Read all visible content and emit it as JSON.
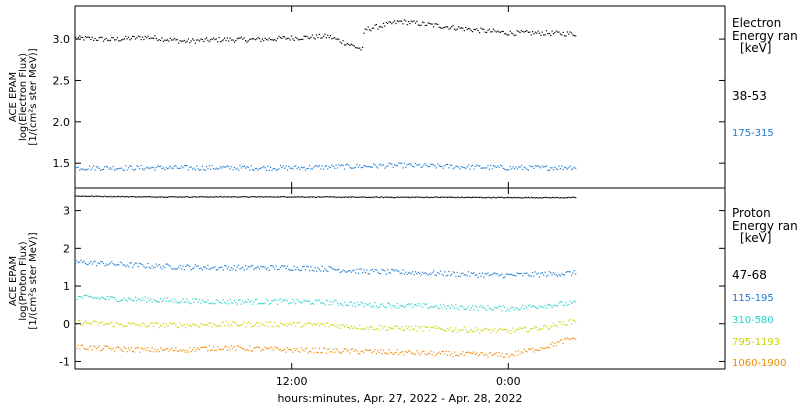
{
  "chart_data": [
    {
      "type": "scatter",
      "panel": "electron",
      "ylabel": [
        "ACE EPAM",
        "log(Electron Flux)",
        "[1/(cm²s ster MeV)]"
      ],
      "ylim": [
        1.2,
        3.4
      ],
      "yticks": [
        1.5,
        2.0,
        2.5,
        3.0
      ],
      "ytick_labels": [
        "1.5",
        "2.0",
        "2.5",
        "3.0"
      ],
      "x_data_range_hours": [
        0,
        27.7
      ],
      "xlim_hours": [
        0,
        36
      ],
      "legend": {
        "title_lines": [
          "Electron",
          "Energy ran"
        ],
        "unit": "[keV]",
        "entries": [
          {
            "label": "38-53",
            "color": "#000000"
          },
          {
            "label": "175-315",
            "color": "#1e7bd0"
          }
        ]
      },
      "series": [
        {
          "label": "38-53",
          "color": "#000000",
          "points": [
            [
              0,
              3.02
            ],
            [
              2,
              3.0
            ],
            [
              4,
              3.03
            ],
            [
              6,
              2.98
            ],
            [
              8,
              3.0
            ],
            [
              10,
              3.0
            ],
            [
              12,
              3.02
            ],
            [
              14,
              3.04
            ],
            [
              15.9,
              2.88
            ],
            [
              16,
              3.12
            ],
            [
              18,
              3.22
            ],
            [
              20,
              3.17
            ],
            [
              22,
              3.12
            ],
            [
              24,
              3.08
            ],
            [
              26,
              3.08
            ],
            [
              27.7,
              3.07
            ]
          ]
        },
        {
          "label": "175-315",
          "color": "#1e7bd0",
          "points": [
            [
              0,
              1.45
            ],
            [
              2,
              1.45
            ],
            [
              4,
              1.45
            ],
            [
              6,
              1.45
            ],
            [
              8,
              1.45
            ],
            [
              10,
              1.45
            ],
            [
              12,
              1.45
            ],
            [
              14,
              1.46
            ],
            [
              16,
              1.47
            ],
            [
              18,
              1.48
            ],
            [
              20,
              1.47
            ],
            [
              22,
              1.46
            ],
            [
              24,
              1.45
            ],
            [
              26,
              1.45
            ],
            [
              27.7,
              1.46
            ]
          ]
        }
      ]
    },
    {
      "type": "scatter",
      "panel": "proton",
      "ylabel": [
        "ACE EPAM",
        "log(Proton Flux)",
        "[1/(cm²s ster MeV)]"
      ],
      "ylim": [
        -1.2,
        3.6
      ],
      "yticks": [
        -1,
        0,
        1,
        2,
        3
      ],
      "ytick_labels": [
        "-1",
        "0",
        "1",
        "2",
        "3"
      ],
      "x_data_range_hours": [
        0,
        27.7
      ],
      "xlim_hours": [
        0,
        36
      ],
      "xtick_hours": [
        12,
        24
      ],
      "xtick_labels": [
        "12:00",
        "0:00"
      ],
      "xlabel": "hours:minutes, Apr. 27, 2022 - Apr. 28, 2022",
      "legend": {
        "title_lines": [
          "Proton",
          "Energy ran"
        ],
        "unit": "[keV]",
        "entries": [
          {
            "label": "47-68",
            "color": "#000000"
          },
          {
            "label": "115-195",
            "color": "#1e7bd0"
          },
          {
            "label": "310-580",
            "color": "#22d3cf"
          },
          {
            "label": "795-1193",
            "color": "#c8d400"
          },
          {
            "label": "1060-1900",
            "color": "#f08a00"
          }
        ]
      },
      "series": [
        {
          "label": "47-68",
          "color": "#000000",
          "points": [
            [
              0,
              3.4
            ],
            [
              4,
              3.38
            ],
            [
              8,
              3.38
            ],
            [
              12,
              3.38
            ],
            [
              16,
              3.37
            ],
            [
              20,
              3.37
            ],
            [
              24,
              3.36
            ],
            [
              27.7,
              3.36
            ]
          ]
        },
        {
          "label": "115-195",
          "color": "#1e7bd0",
          "points": [
            [
              0,
              1.65
            ],
            [
              2,
              1.6
            ],
            [
              4,
              1.55
            ],
            [
              6,
              1.52
            ],
            [
              8,
              1.5
            ],
            [
              10,
              1.5
            ],
            [
              12,
              1.5
            ],
            [
              14,
              1.47
            ],
            [
              16,
              1.4
            ],
            [
              18,
              1.38
            ],
            [
              20,
              1.35
            ],
            [
              22,
              1.32
            ],
            [
              24,
              1.3
            ],
            [
              26,
              1.33
            ],
            [
              27.7,
              1.36
            ]
          ]
        },
        {
          "label": "310-580",
          "color": "#22d3cf",
          "points": [
            [
              0,
              0.72
            ],
            [
              2,
              0.68
            ],
            [
              4,
              0.65
            ],
            [
              6,
              0.62
            ],
            [
              8,
              0.6
            ],
            [
              10,
              0.6
            ],
            [
              12,
              0.6
            ],
            [
              14,
              0.58
            ],
            [
              16,
              0.52
            ],
            [
              18,
              0.5
            ],
            [
              20,
              0.47
            ],
            [
              22,
              0.44
            ],
            [
              24,
              0.42
            ],
            [
              26,
              0.5
            ],
            [
              27.7,
              0.56
            ]
          ]
        },
        {
          "label": "795-1193",
          "color": "#c8d400",
          "points": [
            [
              0,
              0.05
            ],
            [
              2,
              0.0
            ],
            [
              4,
              -0.02
            ],
            [
              6,
              -0.02
            ],
            [
              8,
              0.0
            ],
            [
              10,
              0.0
            ],
            [
              12,
              0.0
            ],
            [
              14,
              -0.02
            ],
            [
              16,
              -0.08
            ],
            [
              18,
              -0.1
            ],
            [
              20,
              -0.12
            ],
            [
              22,
              -0.15
            ],
            [
              24,
              -0.18
            ],
            [
              26,
              -0.08
            ],
            [
              27.7,
              0.1
            ]
          ]
        },
        {
          "label": "1060-1900",
          "color": "#f08a00",
          "points": [
            [
              0,
              -0.6
            ],
            [
              2,
              -0.65
            ],
            [
              4,
              -0.68
            ],
            [
              6,
              -0.68
            ],
            [
              8,
              -0.62
            ],
            [
              10,
              -0.65
            ],
            [
              12,
              -0.68
            ],
            [
              14,
              -0.7
            ],
            [
              16,
              -0.72
            ],
            [
              18,
              -0.75
            ],
            [
              20,
              -0.78
            ],
            [
              22,
              -0.8
            ],
            [
              24,
              -0.82
            ],
            [
              26,
              -0.6
            ],
            [
              27.7,
              -0.35
            ]
          ]
        }
      ]
    }
  ]
}
